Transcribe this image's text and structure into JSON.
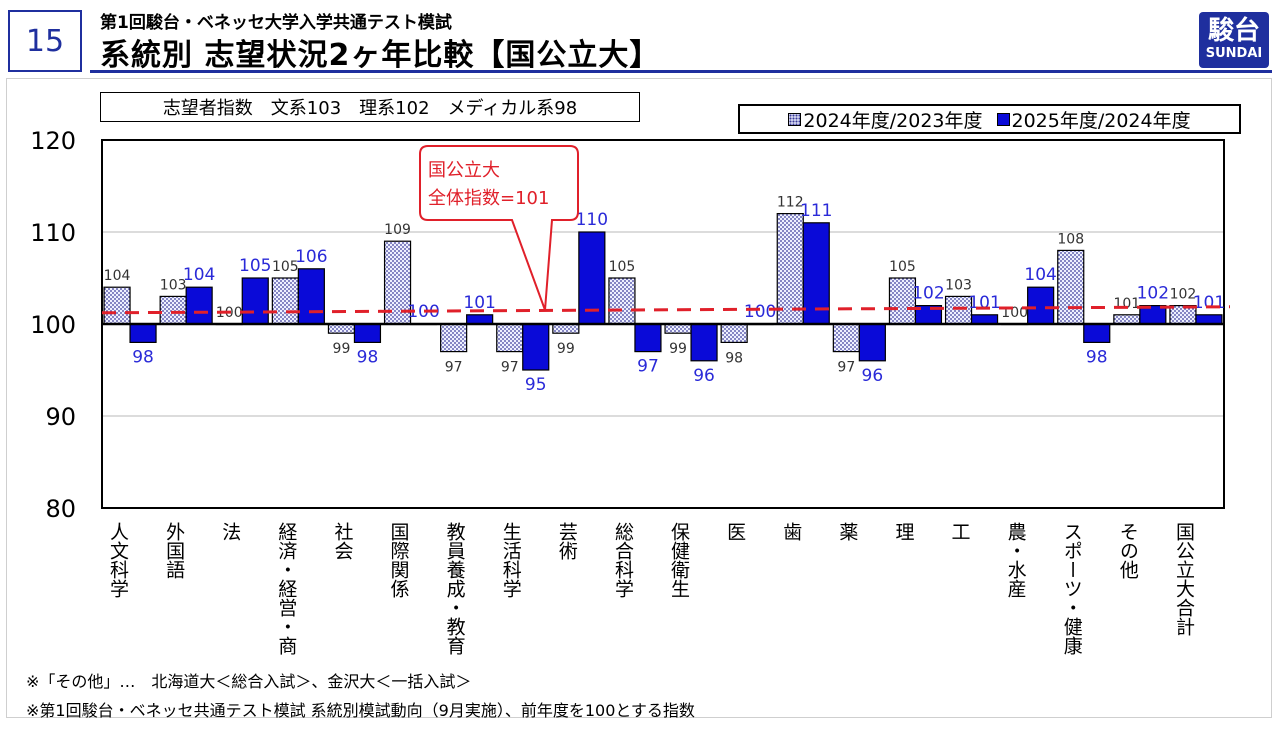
{
  "header": {
    "slide_number": "15",
    "subtitle": "第1回駿台・ベネッセ大学入学共通テスト模試",
    "title": "系統別 志望状況2ヶ年比較【国公立大】",
    "logo_kanji": "駿台",
    "logo_en": "SUNDAI"
  },
  "index_box": "志望者指数　文系103　理系102　メディカル系98",
  "callout": {
    "line1": "国公立大",
    "line2": "全体指数=101"
  },
  "footnotes": [
    "※「その他」…　北海道大＜総合入試＞、金沢大＜一括入試＞",
    "※第1回駿台・ベネッセ共通テスト模試 系統別模試動向（9月実施）、前年度を100とする指数"
  ],
  "colors": {
    "brand": "#1f2f9e",
    "series2": "#0a0ad8",
    "reference": "#e0202a",
    "callout": "#e0202a"
  },
  "chart_data": {
    "type": "bar",
    "ylim": [
      80,
      120
    ],
    "yticks": [
      80,
      90,
      100,
      110,
      120
    ],
    "baseline": 100,
    "reference_line": 101,
    "categories": [
      "人文科学",
      "外国語",
      "法",
      "経済・経営・商",
      "社会",
      "国際関係",
      "教員養成・教育",
      "生活科学",
      "芸術",
      "総合科学",
      "保健衛生",
      "医",
      "歯",
      "薬",
      "理",
      "工",
      "農・水産",
      "スポーツ・健康",
      "その他",
      "国公立大合計"
    ],
    "series": [
      {
        "name": "2024年度/2023年度",
        "values": [
          104,
          103,
          100,
          105,
          99,
          109,
          97,
          97,
          99,
          105,
          99,
          98,
          112,
          97,
          105,
          103,
          100,
          108,
          101,
          102
        ]
      },
      {
        "name": "2025年度/2024年度",
        "values": [
          98,
          104,
          105,
          106,
          98,
          100,
          101,
          95,
          110,
          97,
          96,
          100,
          111,
          96,
          102,
          101,
          104,
          98,
          102,
          101
        ]
      }
    ]
  }
}
